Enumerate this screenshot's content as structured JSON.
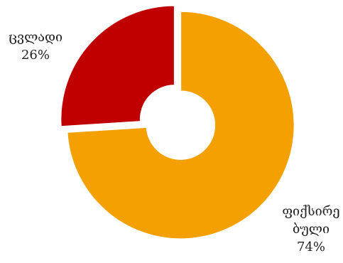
{
  "chart_data": {
    "type": "pie",
    "donut": true,
    "title": "",
    "legend": "none",
    "slices": [
      {
        "label_lines": [
          "ფიქსირე",
          "ბული"
        ],
        "value": 74,
        "value_label": "74%",
        "color": "#F4A000"
      },
      {
        "label_lines": [
          "ცვლადი"
        ],
        "value": 26,
        "value_label": "26%",
        "color": "#C00000"
      }
    ]
  }
}
